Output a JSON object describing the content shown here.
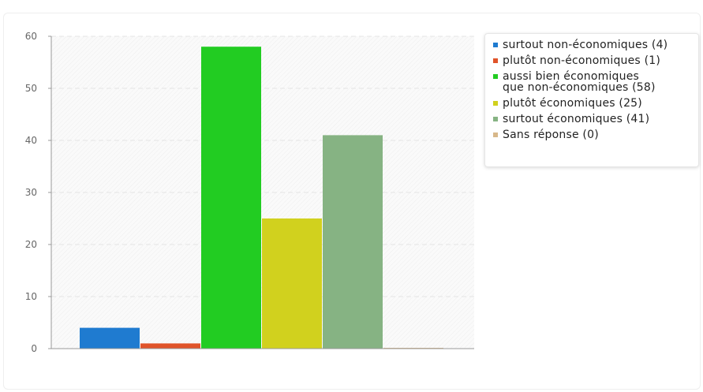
{
  "chart_data": {
    "type": "bar",
    "categories": [
      "surtout non-économiques (4)",
      "plutôt non-économiques (1)",
      "aussi bien économiques\nque non-économiques (58)",
      "plutôt économiques (25)",
      "surtout économiques (41)",
      "Sans réponse (0)"
    ],
    "values": [
      4,
      1,
      58,
      25,
      41,
      0
    ],
    "colors": [
      "#1f7bd0",
      "#e0542a",
      "#22cc22",
      "#d1d11e",
      "#86b383",
      "#d8b88a"
    ],
    "title": "",
    "xlabel": "",
    "ylabel": "",
    "ylim": [
      0,
      60
    ],
    "yticks": [
      "0",
      "10",
      "20",
      "30",
      "40",
      "50",
      "60"
    ],
    "grid": true,
    "legend_position": "right"
  }
}
